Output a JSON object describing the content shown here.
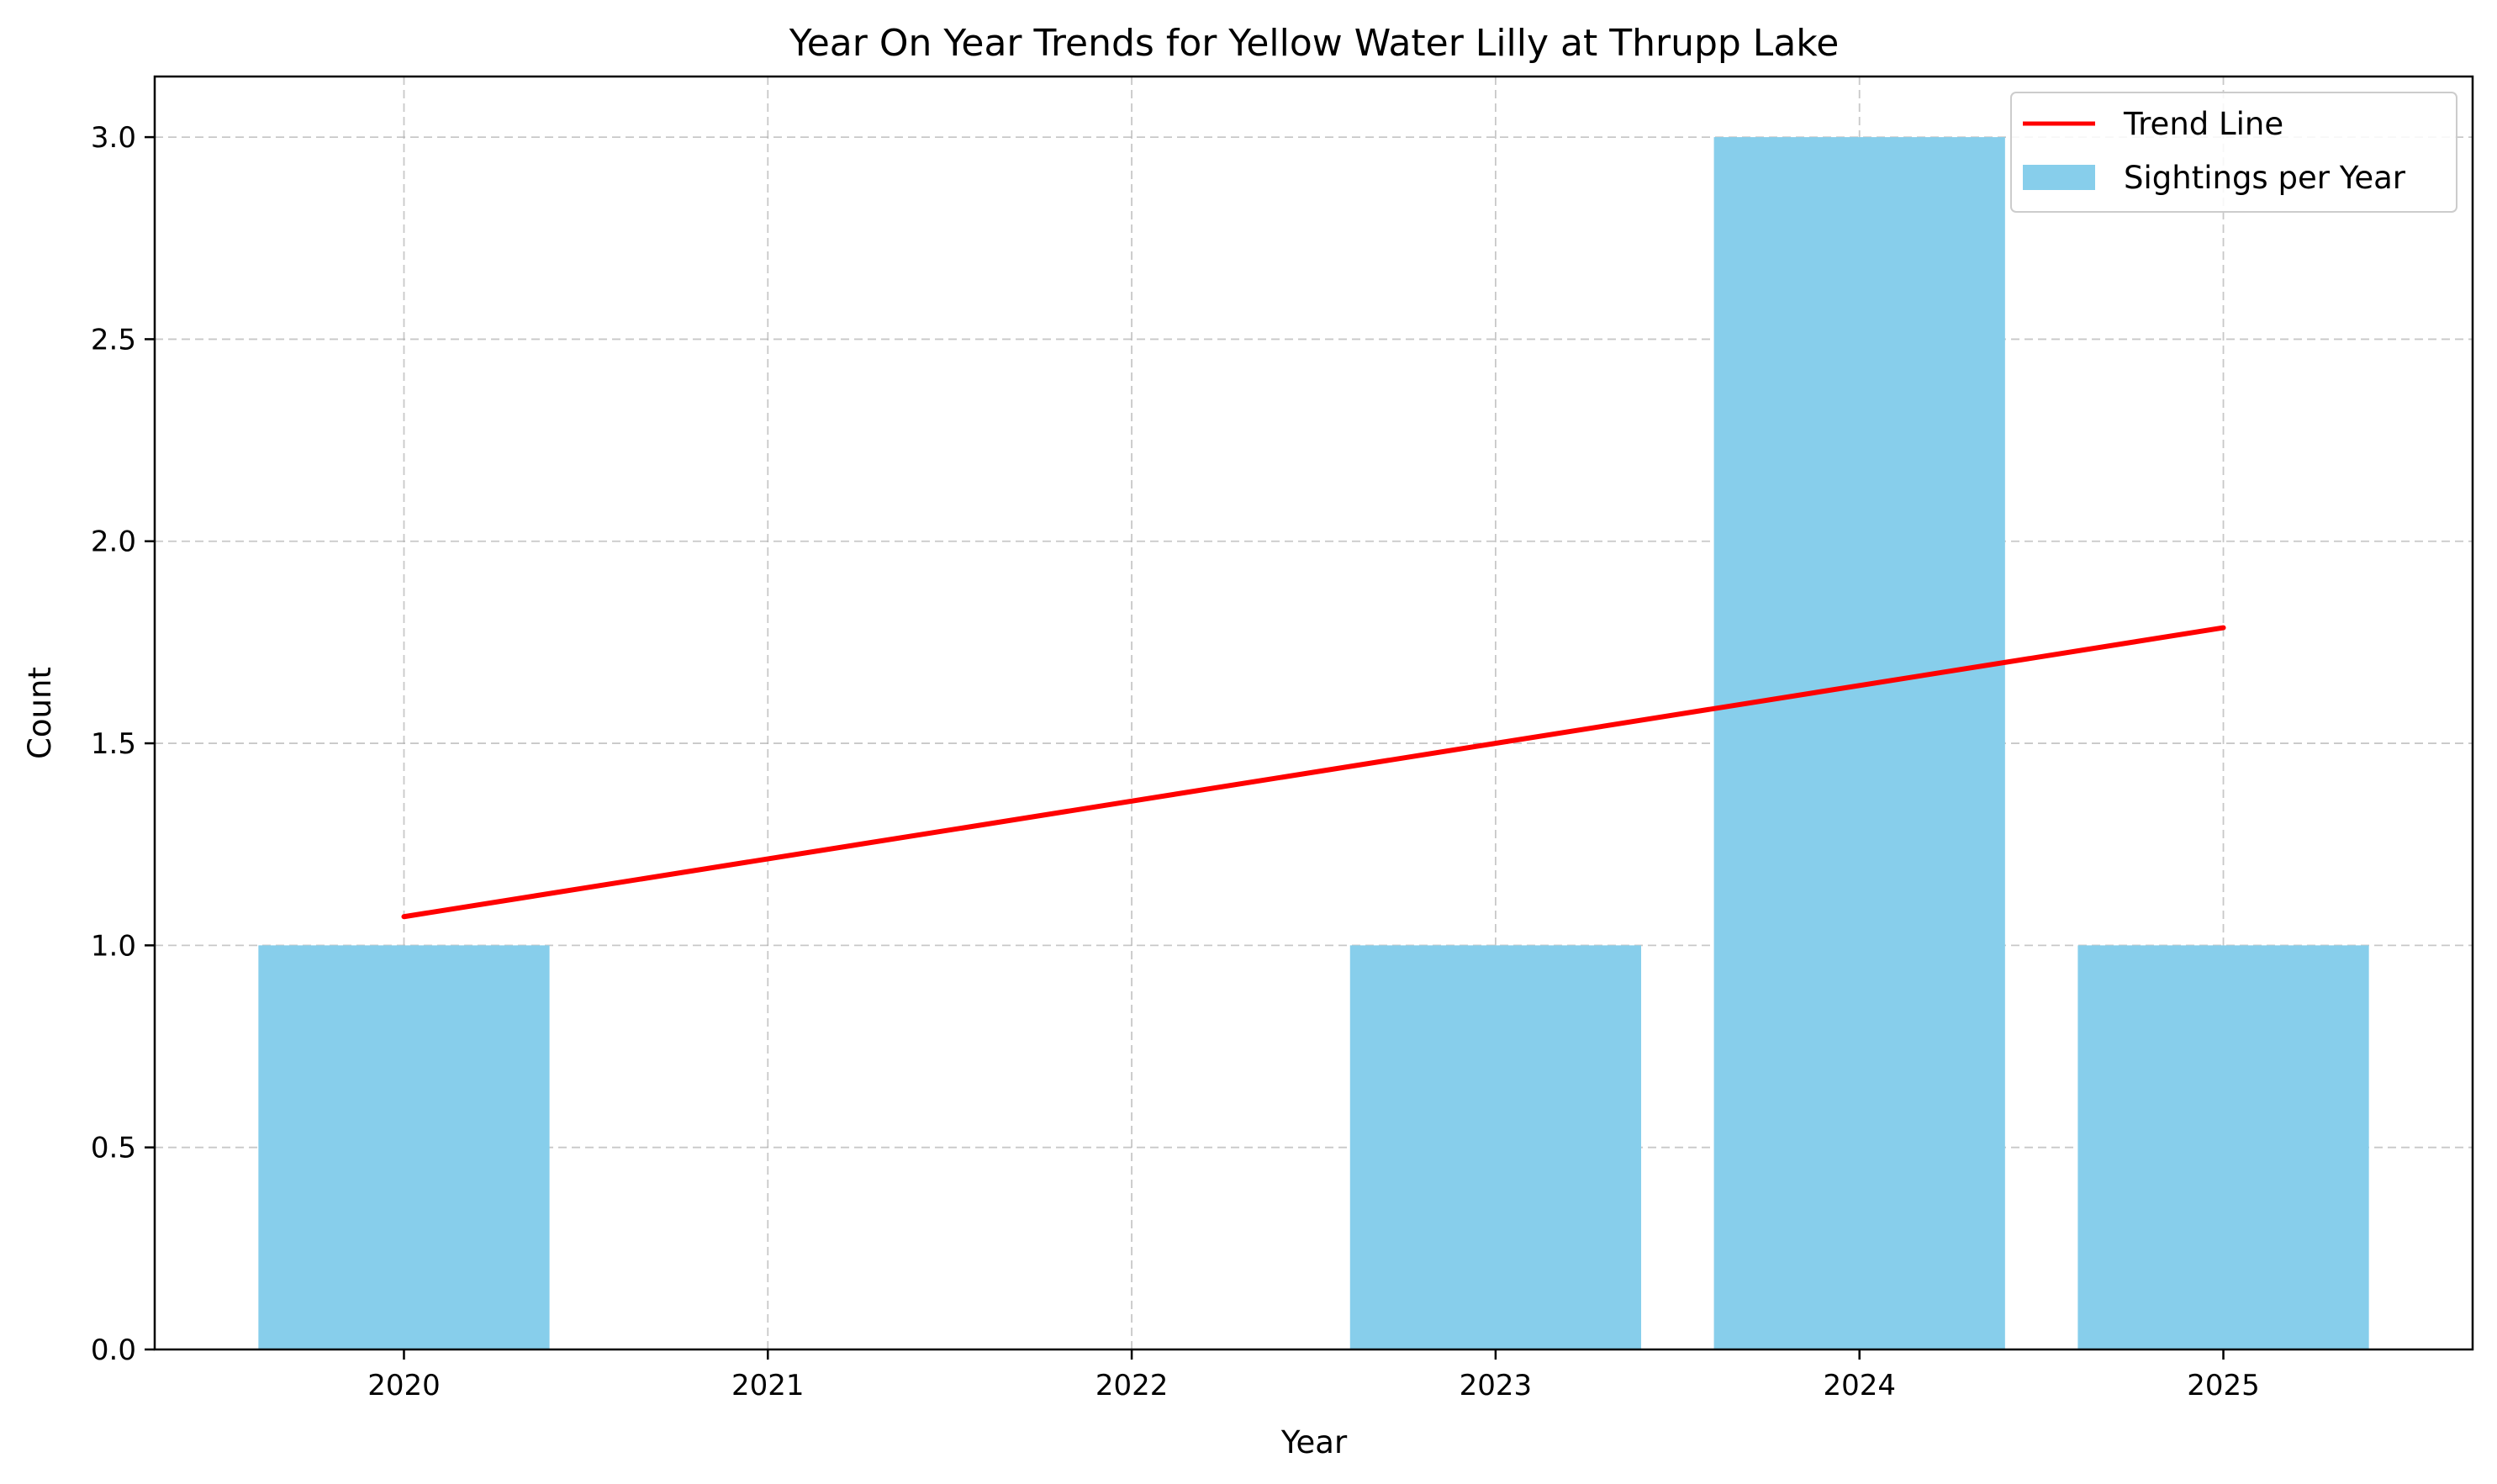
{
  "chart_data": {
    "type": "bar",
    "title": "Year On Year Trends for Yellow Water Lilly at Thrupp Lake",
    "xlabel": "Year",
    "ylabel": "Count",
    "categories": [
      "2020",
      "2021",
      "2022",
      "2023",
      "2024",
      "2025"
    ],
    "x_values": [
      2020,
      2021,
      2022,
      2023,
      2024,
      2025
    ],
    "series": [
      {
        "name": "Sightings per Year",
        "type": "bar",
        "x": [
          2020,
          2023,
          2024,
          2025
        ],
        "values": [
          1,
          1,
          3,
          1
        ],
        "color": "#87CEEB"
      },
      {
        "name": "Trend Line",
        "type": "line",
        "x": [
          2020,
          2025
        ],
        "values": [
          1.071,
          1.786
        ],
        "color": "#FF0000"
      }
    ],
    "xlim": [
      2019.315,
      2025.685
    ],
    "ylim": [
      0,
      3.15
    ],
    "yticks": [
      "0.0",
      "0.5",
      "1.0",
      "1.5",
      "2.0",
      "2.5",
      "3.0"
    ],
    "ytick_values": [
      0,
      0.5,
      1.0,
      1.5,
      2.0,
      2.5,
      3.0
    ],
    "grid": true,
    "legend_position": "top-right"
  }
}
